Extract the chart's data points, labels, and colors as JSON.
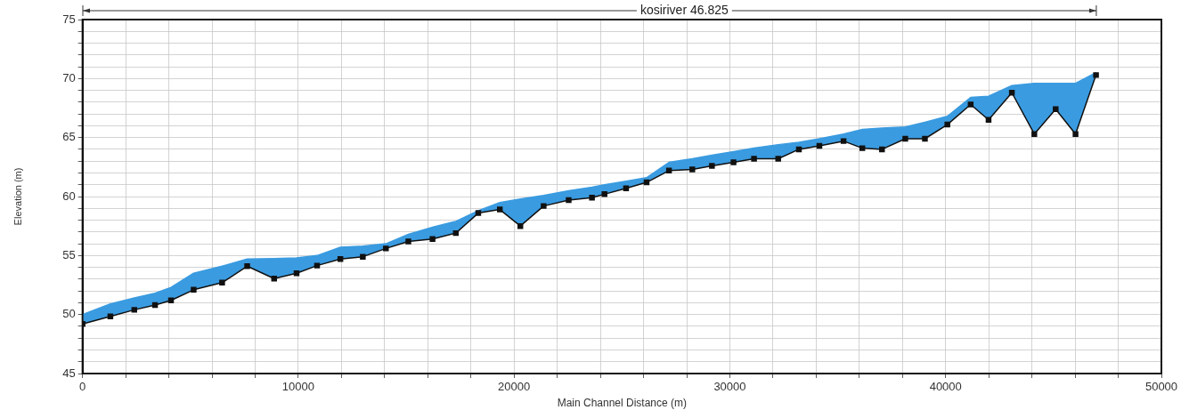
{
  "chart_data": {
    "type": "line",
    "xlabel": "Main Channel Distance (m)",
    "ylabel": "Elevation (m)",
    "annotations": [
      "kosiriver 46.825"
    ],
    "xlim": [
      0,
      50000
    ],
    "ylim": [
      45,
      75
    ],
    "xticks": [
      0,
      {
        "value": 2000,
        "label": null
      },
      {
        "value": 4000,
        "label": null
      },
      {
        "value": 6000,
        "label": null
      },
      {
        "value": 8000,
        "label": null
      },
      10000,
      {
        "value": 12000,
        "label": null
      },
      {
        "value": 14000,
        "label": null
      },
      {
        "value": 16000,
        "label": null
      },
      {
        "value": 18000,
        "label": null
      },
      20000,
      {
        "value": 22000,
        "label": null
      },
      {
        "value": 24000,
        "label": null
      },
      {
        "value": 26000,
        "label": null
      },
      {
        "value": 28000,
        "label": null
      },
      30000,
      {
        "value": 32000,
        "label": null
      },
      {
        "value": 34000,
        "label": null
      },
      {
        "value": 36000,
        "label": null
      },
      {
        "value": 38000,
        "label": null
      },
      40000,
      {
        "value": 42000,
        "label": null
      },
      {
        "value": 44000,
        "label": null
      },
      {
        "value": 46000,
        "label": null
      },
      {
        "value": 48000,
        "label": null
      },
      50000
    ],
    "yticks": [
      45,
      {
        "value": 46,
        "label": null
      },
      {
        "value": 47,
        "label": null
      },
      {
        "value": 48,
        "label": null
      },
      {
        "value": 49,
        "label": null
      },
      50,
      {
        "value": 51,
        "label": null
      },
      {
        "value": 52,
        "label": null
      },
      {
        "value": 53,
        "label": null
      },
      {
        "value": 54,
        "label": null
      },
      55,
      {
        "value": 56,
        "label": null
      },
      {
        "value": 57,
        "label": null
      },
      {
        "value": 58,
        "label": null
      },
      {
        "value": 59,
        "label": null
      },
      60,
      {
        "value": 61,
        "label": null
      },
      {
        "value": 62,
        "label": null
      },
      {
        "value": 63,
        "label": null
      },
      {
        "value": 64,
        "label": null
      },
      65,
      {
        "value": 66,
        "label": null
      },
      {
        "value": 67,
        "label": null
      },
      {
        "value": 68,
        "label": null
      },
      {
        "value": 69,
        "label": null
      },
      70,
      {
        "value": 71,
        "label": null
      },
      {
        "value": 72,
        "label": null
      },
      {
        "value": 73,
        "label": null
      },
      {
        "value": 74,
        "label": null
      },
      75
    ],
    "grid": true,
    "legend": false,
    "series": [
      {
        "type": "area",
        "color": "#3a9be0",
        "marker": "none",
        "x": [
          0,
          1290,
          2400,
          3360,
          4100,
          5150,
          6470,
          7630,
          8880,
          9920,
          10870,
          11950,
          12990,
          14060,
          15100,
          16220,
          17300,
          18340,
          19340,
          20290,
          21370,
          22530,
          23610,
          24190,
          25190,
          26140,
          27180,
          28260,
          29170,
          30170,
          31120,
          32240,
          33200,
          34150,
          35270,
          36140,
          37050,
          38130,
          39040,
          40080,
          41160,
          41990,
          43070,
          44110,
          45100,
          46020,
          46970
        ],
        "values": [
          50.0,
          50.9,
          51.4,
          51.8,
          52.3,
          53.5,
          54.1,
          54.7,
          54.75,
          54.8,
          55.0,
          55.7,
          55.8,
          56.0,
          56.8,
          57.4,
          57.9,
          58.8,
          59.5,
          59.8,
          60.1,
          60.5,
          60.8,
          61.0,
          61.3,
          61.6,
          62.9,
          63.2,
          63.5,
          63.8,
          64.1,
          64.4,
          64.6,
          64.9,
          65.3,
          65.7,
          65.8,
          65.9,
          66.3,
          66.8,
          68.4,
          68.5,
          69.4,
          69.6,
          69.6,
          69.6,
          70.5
        ]
      },
      {
        "type": "line",
        "color": "#111111",
        "marker": "square",
        "x": [
          0,
          1290,
          2400,
          3360,
          4100,
          5150,
          6470,
          7630,
          8880,
          9920,
          10870,
          11950,
          12990,
          14060,
          15100,
          16220,
          17300,
          18340,
          19340,
          20290,
          21370,
          22530,
          23610,
          24190,
          25190,
          26140,
          27180,
          28260,
          29170,
          30170,
          31120,
          32240,
          33200,
          34150,
          35270,
          36140,
          37050,
          38130,
          39040,
          40080,
          41160,
          41990,
          43070,
          44110,
          45100,
          46020,
          46970
        ],
        "values": [
          49.2,
          49.85,
          50.4,
          50.8,
          51.2,
          52.1,
          52.7,
          54.1,
          53.05,
          53.5,
          54.15,
          54.7,
          54.9,
          55.6,
          56.2,
          56.4,
          56.9,
          58.6,
          58.9,
          57.5,
          59.2,
          59.7,
          59.9,
          60.2,
          60.7,
          61.2,
          62.2,
          62.3,
          62.6,
          62.9,
          63.2,
          63.2,
          64.0,
          64.3,
          64.7,
          64.1,
          64.0,
          64.9,
          64.9,
          66.1,
          67.8,
          66.5,
          68.8,
          65.3,
          67.4,
          65.3,
          70.3
        ]
      }
    ]
  }
}
